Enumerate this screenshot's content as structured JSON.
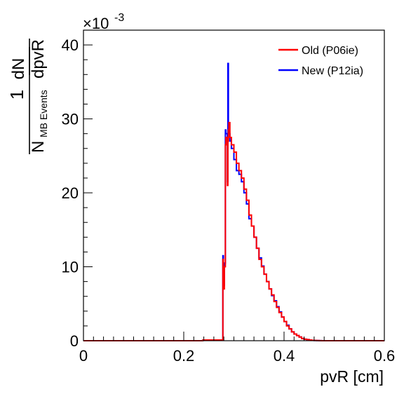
{
  "chart_data": {
    "type": "line",
    "xlabel": "pvR [cm]",
    "ylabel": {
      "numerator": "1",
      "denominator_main": "N",
      "denominator_sub": "MB Events",
      "frac_top": "dN",
      "frac_bottom": "dpvR"
    },
    "y_multiplier": {
      "base": "×10",
      "exponent": "-3"
    },
    "xlim": [
      0,
      0.6
    ],
    "ylim": [
      0,
      42
    ],
    "x_ticks": [
      "0",
      "0.2",
      "0.4",
      "0.6"
    ],
    "x_tick_values": [
      0,
      0.2,
      0.4,
      0.6
    ],
    "y_ticks": [
      "0",
      "10",
      "20",
      "30",
      "40"
    ],
    "y_tick_values": [
      0,
      10,
      20,
      30,
      40
    ],
    "grid": false,
    "legend_position": "top-right",
    "series": [
      {
        "name": "Old (P06ie)",
        "color": "#ff0000",
        "x": [
          0.0,
          0.238,
          0.276,
          0.278,
          0.279,
          0.281,
          0.283,
          0.284,
          0.287,
          0.288,
          0.289,
          0.29,
          0.292,
          0.295,
          0.3,
          0.305,
          0.31,
          0.315,
          0.32,
          0.325,
          0.33,
          0.335,
          0.34,
          0.345,
          0.35,
          0.355,
          0.36,
          0.365,
          0.37,
          0.375,
          0.38,
          0.385,
          0.39,
          0.395,
          0.4,
          0.405,
          0.41,
          0.415,
          0.42,
          0.425,
          0.43,
          0.435,
          0.44,
          0.445,
          0.45,
          0.455,
          0.46,
          0.465,
          0.47,
          0.475,
          0.48,
          0.485,
          0.49,
          0.6
        ],
        "y": [
          0.0,
          0.1,
          0.1,
          11.0,
          7.0,
          10.0,
          26.5,
          27.5,
          21.0,
          27.0,
          28.5,
          29.5,
          27.5,
          26.5,
          25.5,
          24.0,
          23.0,
          22.0,
          20.5,
          19.0,
          17.0,
          15.5,
          14.0,
          12.5,
          11.0,
          10.0,
          9.0,
          8.0,
          7.0,
          6.2,
          5.3,
          4.5,
          3.8,
          3.2,
          2.6,
          2.0,
          1.6,
          1.2,
          0.9,
          0.7,
          0.5,
          0.3,
          0.2,
          0.15,
          0.1,
          0.05,
          0.03,
          0.02,
          0.01,
          0.0,
          0.0,
          0.0,
          0.0,
          0.0
        ]
      },
      {
        "name": "New (P12ia)",
        "color": "#0000ff",
        "x": [
          0.0,
          0.238,
          0.276,
          0.278,
          0.279,
          0.281,
          0.283,
          0.284,
          0.287,
          0.288,
          0.289,
          0.29,
          0.292,
          0.295,
          0.3,
          0.305,
          0.31,
          0.315,
          0.32,
          0.325,
          0.33,
          0.335,
          0.34,
          0.345,
          0.35,
          0.355,
          0.36,
          0.365,
          0.37,
          0.375,
          0.38,
          0.385,
          0.39,
          0.395,
          0.4,
          0.405,
          0.41,
          0.415,
          0.42,
          0.425,
          0.43,
          0.435,
          0.44,
          0.445,
          0.45,
          0.455,
          0.46,
          0.465,
          0.47,
          0.475,
          0.48,
          0.485,
          0.49,
          0.6
        ],
        "y": [
          0.0,
          0.1,
          0.1,
          11.5,
          7.5,
          10.5,
          28.5,
          28.0,
          21.5,
          37.5,
          29.0,
          28.0,
          27.0,
          26.0,
          24.5,
          23.0,
          22.5,
          21.5,
          20.0,
          18.5,
          16.5,
          15.5,
          14.0,
          12.5,
          11.2,
          10.1,
          9.0,
          8.0,
          7.0,
          6.1,
          5.4,
          4.6,
          3.9,
          3.2,
          2.6,
          2.1,
          1.6,
          1.2,
          0.9,
          0.7,
          0.5,
          0.3,
          0.2,
          0.15,
          0.1,
          0.05,
          0.03,
          0.02,
          0.01,
          0.0,
          0.0,
          0.0,
          0.0,
          0.0
        ]
      }
    ]
  }
}
